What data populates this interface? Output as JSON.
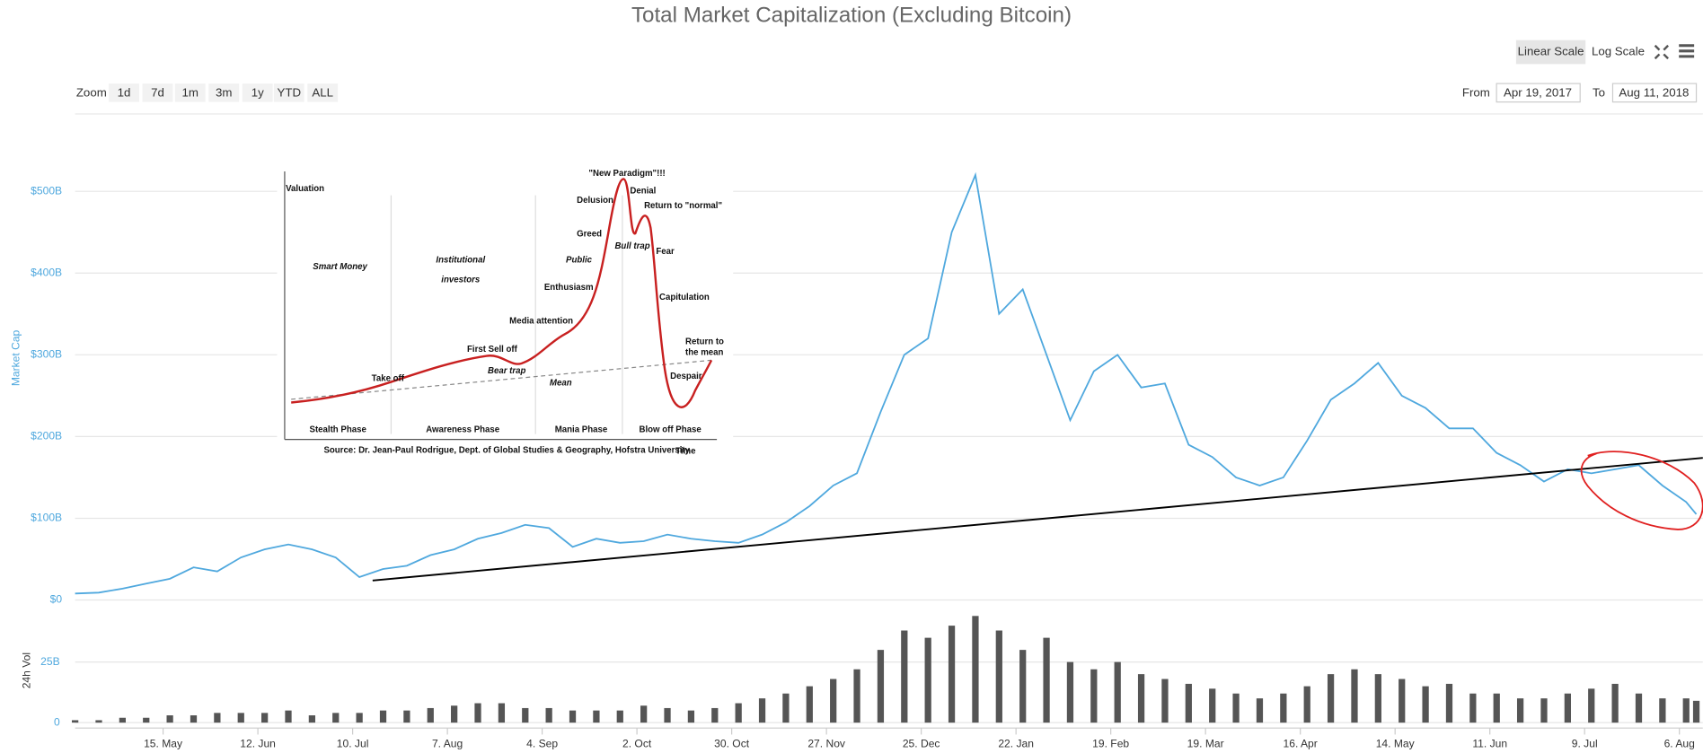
{
  "chart_data": [
    {
      "type": "line",
      "title": "Total Market Capitalization (Excluding Bitcoin)",
      "ylabel": "Market Cap",
      "x": [
        "2017-04-19",
        "2017-04-26",
        "2017-05-03",
        "2017-05-10",
        "2017-05-17",
        "2017-05-24",
        "2017-05-31",
        "2017-06-07",
        "2017-06-14",
        "2017-06-21",
        "2017-06-28",
        "2017-07-05",
        "2017-07-12",
        "2017-07-19",
        "2017-07-26",
        "2017-08-02",
        "2017-08-09",
        "2017-08-16",
        "2017-08-23",
        "2017-08-30",
        "2017-09-06",
        "2017-09-13",
        "2017-09-20",
        "2017-09-27",
        "2017-10-04",
        "2017-10-11",
        "2017-10-18",
        "2017-10-25",
        "2017-11-01",
        "2017-11-08",
        "2017-11-15",
        "2017-11-22",
        "2017-11-29",
        "2017-12-06",
        "2017-12-13",
        "2017-12-20",
        "2017-12-27",
        "2018-01-03",
        "2018-01-10",
        "2018-01-17",
        "2018-01-24",
        "2018-01-31",
        "2018-02-07",
        "2018-02-14",
        "2018-02-21",
        "2018-02-28",
        "2018-03-07",
        "2018-03-14",
        "2018-03-21",
        "2018-03-28",
        "2018-04-04",
        "2018-04-11",
        "2018-04-18",
        "2018-04-25",
        "2018-05-02",
        "2018-05-09",
        "2018-05-16",
        "2018-05-23",
        "2018-05-30",
        "2018-06-06",
        "2018-06-13",
        "2018-06-20",
        "2018-06-27",
        "2018-07-04",
        "2018-07-11",
        "2018-07-18",
        "2018-07-25",
        "2018-08-01",
        "2018-08-08",
        "2018-08-11"
      ],
      "series": [
        {
          "color": "#4fa8de",
          "values": [
            8,
            9,
            14,
            20,
            26,
            40,
            35,
            52,
            62,
            68,
            62,
            52,
            28,
            38,
            42,
            55,
            62,
            75,
            82,
            92,
            88,
            65,
            75,
            70,
            72,
            80,
            75,
            72,
            70,
            80,
            95,
            115,
            140,
            155,
            230,
            300,
            320,
            450,
            520,
            350,
            380,
            300,
            220,
            280,
            300,
            260,
            265,
            190,
            175,
            150,
            140,
            150,
            195,
            245,
            265,
            290,
            250,
            235,
            210,
            210,
            180,
            165,
            145,
            160,
            155,
            160,
            165,
            140,
            120,
            105
          ]
        }
      ],
      "xlim": [
        "2017-04-19",
        "2018-08-11"
      ],
      "xticks": [
        {
          "value": "2017-05-15",
          "label": "15. May"
        },
        {
          "value": "2017-06-12",
          "label": "12. Jun"
        },
        {
          "value": "2017-07-10",
          "label": "10. Jul"
        },
        {
          "value": "2017-08-07",
          "label": "7. Aug"
        },
        {
          "value": "2017-09-04",
          "label": "4. Sep"
        },
        {
          "value": "2017-10-02",
          "label": "2. Oct"
        },
        {
          "value": "2017-10-30",
          "label": "30. Oct"
        },
        {
          "value": "2017-11-27",
          "label": "27. Nov"
        },
        {
          "value": "2017-12-25",
          "label": "25. Dec"
        },
        {
          "value": "2018-01-22",
          "label": "22. Jan"
        },
        {
          "value": "2018-02-19",
          "label": "19. Feb"
        },
        {
          "value": "2018-03-19",
          "label": "19. Mar"
        },
        {
          "value": "2018-04-16",
          "label": "16. Apr"
        },
        {
          "value": "2018-05-14",
          "label": "14. May"
        },
        {
          "value": "2018-06-11",
          "label": "11. Jun"
        },
        {
          "value": "2018-07-09",
          "label": "9. Jul"
        },
        {
          "value": "2018-08-06",
          "label": "6. Aug"
        }
      ],
      "ylim": [
        0,
        600
      ],
      "yticks": [
        {
          "value": 0,
          "label": "$0"
        },
        {
          "value": 100,
          "label": "$100B"
        },
        {
          "value": 200,
          "label": "$200B"
        },
        {
          "value": 300,
          "label": "$300B"
        },
        {
          "value": 400,
          "label": "$400B"
        },
        {
          "value": 500,
          "label": "$500B"
        }
      ],
      "grid": true
    },
    {
      "type": "bar",
      "ylabel": "24h Vol",
      "x": [
        "2017-04-19",
        "2017-04-26",
        "2017-05-03",
        "2017-05-10",
        "2017-05-17",
        "2017-05-24",
        "2017-05-31",
        "2017-06-07",
        "2017-06-14",
        "2017-06-21",
        "2017-06-28",
        "2017-07-05",
        "2017-07-12",
        "2017-07-19",
        "2017-07-26",
        "2017-08-02",
        "2017-08-09",
        "2017-08-16",
        "2017-08-23",
        "2017-08-30",
        "2017-09-06",
        "2017-09-13",
        "2017-09-20",
        "2017-09-27",
        "2017-10-04",
        "2017-10-11",
        "2017-10-18",
        "2017-10-25",
        "2017-11-01",
        "2017-11-08",
        "2017-11-15",
        "2017-11-22",
        "2017-11-29",
        "2017-12-06",
        "2017-12-13",
        "2017-12-20",
        "2017-12-27",
        "2018-01-03",
        "2018-01-10",
        "2018-01-17",
        "2018-01-24",
        "2018-01-31",
        "2018-02-07",
        "2018-02-14",
        "2018-02-21",
        "2018-02-28",
        "2018-03-07",
        "2018-03-14",
        "2018-03-21",
        "2018-03-28",
        "2018-04-04",
        "2018-04-11",
        "2018-04-18",
        "2018-04-25",
        "2018-05-02",
        "2018-05-09",
        "2018-05-16",
        "2018-05-23",
        "2018-05-30",
        "2018-06-06",
        "2018-06-13",
        "2018-06-20",
        "2018-06-27",
        "2018-07-04",
        "2018-07-11",
        "2018-07-18",
        "2018-07-25",
        "2018-08-01",
        "2018-08-08",
        "2018-08-11"
      ],
      "values": [
        1,
        1,
        2,
        2,
        3,
        3,
        4,
        4,
        4,
        5,
        3,
        4,
        4,
        5,
        5,
        6,
        7,
        8,
        8,
        6,
        6,
        5,
        5,
        5,
        7,
        6,
        5,
        6,
        8,
        10,
        12,
        15,
        18,
        22,
        30,
        38,
        35,
        40,
        44,
        38,
        30,
        35,
        25,
        22,
        25,
        20,
        18,
        16,
        14,
        12,
        10,
        12,
        15,
        20,
        22,
        20,
        18,
        15,
        16,
        12,
        12,
        10,
        10,
        12,
        14,
        16,
        12,
        10,
        10,
        9
      ],
      "color": "#555555",
      "xlim": [
        "2017-04-19",
        "2018-08-11"
      ],
      "ylim": [
        0,
        47
      ],
      "yticks": [
        0,
        {
          "value": 25,
          "label": "25B"
        }
      ],
      "grid": true
    }
  ],
  "controls": {
    "zoom_label": "Zoom",
    "zoom": [
      "1d",
      "7d",
      "1m",
      "3m",
      "1y",
      "YTD",
      "ALL"
    ],
    "scales": [
      "Linear Scale",
      "Log Scale"
    ],
    "active_scale": 0,
    "from_label": "From",
    "from": "Apr 19, 2017",
    "to_label": "To",
    "to": "Aug 11, 2018"
  },
  "inset": {
    "y_label": "Valuation",
    "x_label": "Time",
    "groups": [
      [
        "Smart Money"
      ],
      [
        "Institutional",
        "investors"
      ],
      [
        "Public"
      ]
    ],
    "phases": [
      "Stealth Phase",
      "Awareness Phase",
      "Mania Phase",
      "Blow off Phase"
    ],
    "annotations": [
      [
        "Take off"
      ],
      [
        "First Sell off"
      ],
      [
        "Bear trap"
      ],
      [
        "Media attention"
      ],
      [
        "Enthusiasm"
      ],
      [
        "Greed"
      ],
      [
        "Delusion"
      ],
      [
        "\"New Paradigm\"!!!"
      ],
      [
        "Denial"
      ],
      [
        "Bull trap"
      ],
      [
        "Return to \"normal\""
      ],
      [
        "Fear"
      ],
      [
        "Capitulation"
      ],
      [
        "Despair"
      ],
      [
        "Return to",
        "the mean"
      ],
      [
        "Mean"
      ]
    ],
    "source": "Source: Dr. Jean-Paul Rodrigue, Dept. of Global Studies & Geography, Hofstra University"
  }
}
